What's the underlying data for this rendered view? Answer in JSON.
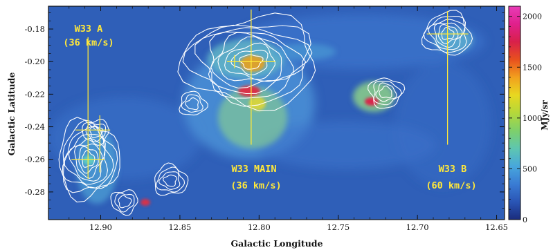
{
  "chart_data": {
    "type": "heatmap",
    "title": "",
    "xlabel": "Galactic Longitude",
    "ylabel": "Galactic Latitude",
    "xlim": [
      12.933,
      12.645
    ],
    "ylim": [
      -0.297,
      -0.166
    ],
    "x_reversed": true,
    "x_ticks": [
      12.9,
      12.85,
      12.8,
      12.75,
      12.7,
      12.65
    ],
    "x_tick_labels": [
      "12.90",
      "12.85",
      "12.80",
      "12.75",
      "12.70",
      "12.65"
    ],
    "y_ticks": [
      -0.18,
      -0.2,
      -0.22,
      -0.24,
      -0.26,
      -0.28
    ],
    "y_tick_labels": [
      "-0.18",
      "-0.20",
      "-0.22",
      "-0.24",
      "-0.26",
      "-0.28"
    ],
    "grid": false,
    "colorbar": {
      "label": "MJy/sr",
      "range": [
        0,
        2100
      ],
      "ticks": [
        0,
        500,
        1000,
        1500,
        2000
      ],
      "tick_labels": [
        "0",
        "500",
        "1000",
        "1500",
        "2000"
      ],
      "colors": [
        "#1a2c7c",
        "#2a55b5",
        "#3a7cd4",
        "#48a7dc",
        "#5ec6b0",
        "#7ed06a",
        "#b4d83a",
        "#e8d820",
        "#f2a01e",
        "#e8501e",
        "#d8204a",
        "#e0208c",
        "#e83cb8"
      ],
      "placement": "right"
    },
    "background_color": "#2f5fb8",
    "contour_color": "#ffffff",
    "marker_color": "#ffe83a",
    "regions": [
      {
        "label": "W33 A",
        "velocity": "(36 km/s)",
        "l": 12.908,
        "b": -0.26
      },
      {
        "label": "W33 MAIN",
        "velocity": "(36 km/s)",
        "l": 12.805,
        "b": -0.2
      },
      {
        "label": "W33 B",
        "velocity": "(60 km/s)",
        "l": 12.681,
        "b": -0.183
      }
    ],
    "contour_sources": [
      {
        "l": 12.908,
        "b": -0.26,
        "levels": 8
      },
      {
        "l": 12.903,
        "b": -0.243,
        "levels": 3
      },
      {
        "l": 12.805,
        "b": -0.2,
        "levels": 9
      },
      {
        "l": 12.856,
        "b": -0.273,
        "levels": 4
      },
      {
        "l": 12.842,
        "b": -0.226,
        "levels": 3
      },
      {
        "l": 12.72,
        "b": -0.219,
        "levels": 4
      },
      {
        "l": 12.681,
        "b": -0.183,
        "levels": 6
      },
      {
        "l": 12.885,
        "b": -0.286,
        "levels": 3
      }
    ],
    "emission_peaks": [
      {
        "l": 12.808,
        "b": -0.219,
        "value": 1900
      },
      {
        "l": 12.803,
        "b": -0.198,
        "value": 1500
      },
      {
        "l": 12.727,
        "b": -0.223,
        "value": 2000
      },
      {
        "l": 12.885,
        "b": -0.285,
        "value": 1600
      },
      {
        "l": 12.908,
        "b": -0.26,
        "value": 900
      }
    ]
  }
}
